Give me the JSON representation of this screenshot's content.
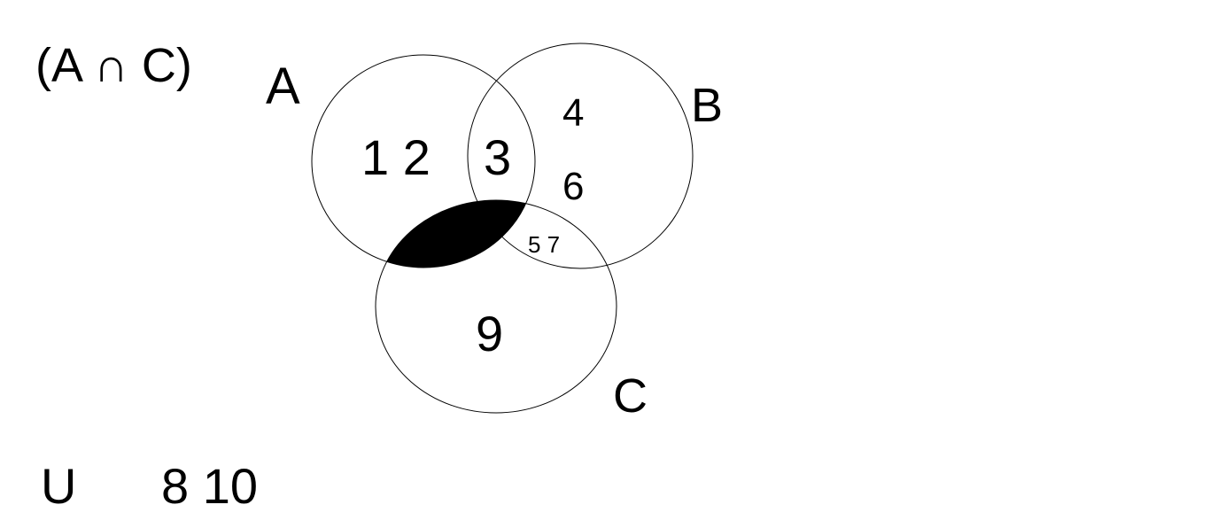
{
  "expression": "(A ∩ C)",
  "sets": {
    "A": {
      "label": "A"
    },
    "B": {
      "label": "B"
    },
    "C": {
      "label": "C"
    }
  },
  "universe": {
    "label": "U",
    "outside_elements": "8 10"
  },
  "regions": {
    "a_only": "1 2",
    "a_and_b": "3",
    "b_only_top": "4",
    "b_only_bottom": "6",
    "b_and_c": "5 7",
    "c_only": "9",
    "a_and_c_shaded": ""
  },
  "shaded_region": "A ∩ C",
  "colors": {
    "outline": "#000000",
    "shade": "#000000",
    "background": "#ffffff"
  }
}
